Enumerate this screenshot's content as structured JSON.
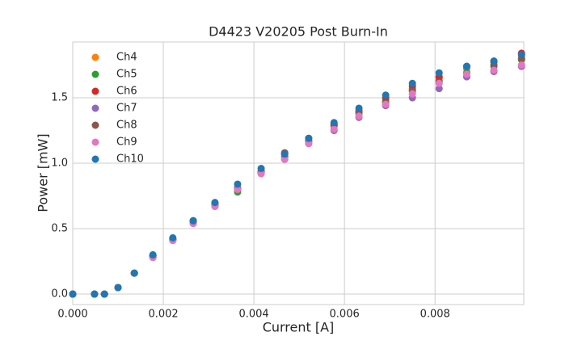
{
  "chart_data": {
    "type": "scatter",
    "title": "D4423 V20205 Post Burn-In",
    "x_label": "Current [A]",
    "y_label": "Power [mW]",
    "x": [
      0,
      0.00048,
      0.0007,
      0.001,
      0.00136,
      0.00177,
      0.00221,
      0.00266,
      0.00314,
      0.00364,
      0.00416,
      0.00468,
      0.00521,
      0.00577,
      0.00632,
      0.00691,
      0.0075,
      0.00809,
      0.0087,
      0.0093,
      0.00991
    ],
    "series": [
      {
        "name": "Ch4",
        "color": "#ff7f0e",
        "values": [
          0,
          0,
          0,
          0.05,
          0.16,
          0.29,
          0.42,
          0.55,
          0.68,
          0.81,
          0.93,
          1.05,
          1.17,
          1.28,
          1.39,
          1.48,
          1.57,
          1.65,
          1.72,
          1.77,
          1.82
        ]
      },
      {
        "name": "Ch5",
        "color": "#2ca02c",
        "values": [
          0,
          0,
          0,
          0.05,
          0.16,
          0.29,
          0.42,
          0.55,
          0.68,
          0.78,
          0.93,
          1.05,
          1.17,
          1.29,
          1.38,
          1.47,
          1.56,
          1.63,
          1.69,
          1.74,
          1.79
        ]
      },
      {
        "name": "Ch6",
        "color": "#d62728",
        "values": [
          0,
          0,
          0,
          0.05,
          0.16,
          0.29,
          0.42,
          0.56,
          0.69,
          0.81,
          0.94,
          1.07,
          1.19,
          1.3,
          1.4,
          1.5,
          1.59,
          1.66,
          1.74,
          1.78,
          1.84
        ]
      },
      {
        "name": "Ch7",
        "color": "#9467bd",
        "values": [
          0,
          0,
          0,
          0.05,
          0.16,
          0.28,
          0.41,
          0.54,
          0.67,
          0.8,
          0.92,
          1.03,
          1.15,
          1.25,
          1.35,
          1.44,
          1.5,
          1.57,
          1.66,
          1.7,
          1.74
        ]
      },
      {
        "name": "Ch8",
        "color": "#8c564b",
        "values": [
          0,
          0,
          0,
          0.05,
          0.16,
          0.29,
          0.42,
          0.56,
          0.68,
          0.81,
          0.93,
          1.08,
          1.17,
          1.29,
          1.39,
          1.46,
          1.55,
          1.62,
          1.74,
          1.75,
          1.8
        ]
      },
      {
        "name": "Ch9",
        "color": "#e377c2",
        "values": [
          0,
          0,
          0,
          0.05,
          0.16,
          0.28,
          0.41,
          0.54,
          0.67,
          0.8,
          0.92,
          1.03,
          1.15,
          1.26,
          1.36,
          1.45,
          1.53,
          1.61,
          1.68,
          1.71,
          1.75
        ]
      },
      {
        "name": "Ch10",
        "color": "#1f77b4",
        "values": [
          0,
          0,
          0,
          0.05,
          0.16,
          0.3,
          0.43,
          0.56,
          0.7,
          0.84,
          0.96,
          1.07,
          1.19,
          1.31,
          1.42,
          1.52,
          1.61,
          1.69,
          1.74,
          1.78,
          1.83
        ]
      }
    ],
    "xlim": [
      0,
      0.00996
    ],
    "ylim": [
      -0.08,
      1.926
    ],
    "xticks": [
      {
        "value": 0,
        "label": "0.000"
      },
      {
        "value": 0.002,
        "label": "0.002"
      },
      {
        "value": 0.004,
        "label": "0.004"
      },
      {
        "value": 0.006,
        "label": "0.006"
      },
      {
        "value": 0.008,
        "label": "0.008"
      }
    ],
    "yticks": [
      {
        "value": 0,
        "label": "0.0"
      },
      0.5,
      {
        "value": 1,
        "label": "1.0"
      },
      1.5
    ],
    "grid": true,
    "legend": "upper left"
  }
}
